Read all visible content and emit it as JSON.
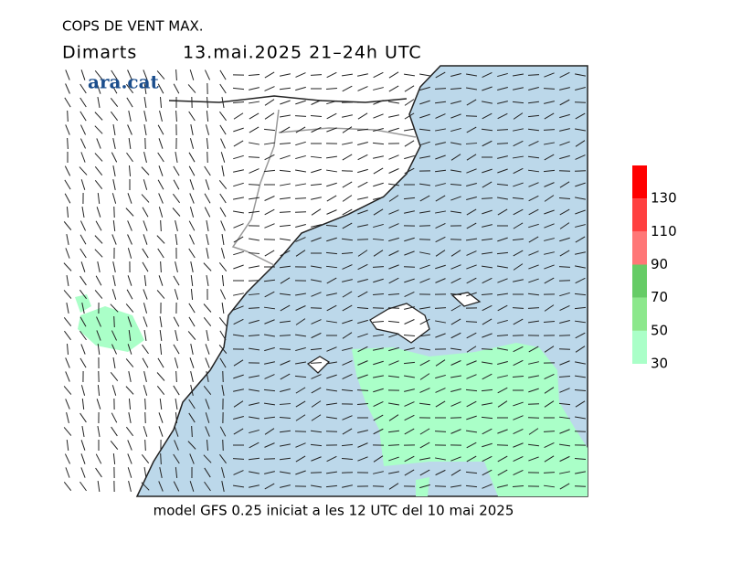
{
  "header": {
    "title": "COPS DE VENT MAX.",
    "day": "Dimarts",
    "date": "13.mai.2025 21–24h UTC",
    "logo": "ara.cat"
  },
  "footer": "model GFS 0.25 iniciat a les 12 UTC del 10 mai 2025",
  "legend": {
    "lim": [
      30,
      150
    ],
    "ticks": [
      30,
      50,
      70,
      90,
      110,
      130
    ],
    "colors": [
      "#aaffc8",
      "#8ce88c",
      "#66cc66",
      "#ff7777",
      "#ff4040",
      "#ff0000"
    ]
  }
}
